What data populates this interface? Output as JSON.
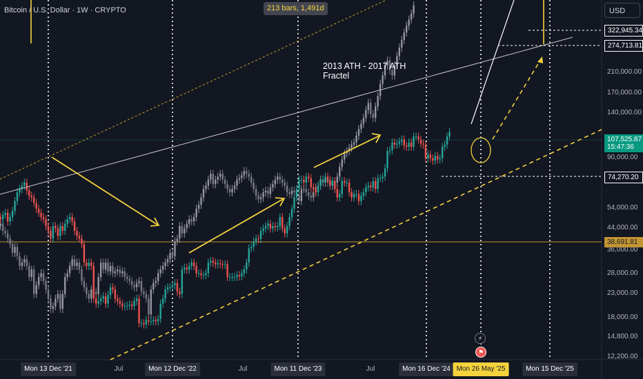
{
  "header": {
    "symbol_title": "Bitcoin / U.S. Dollar · 1W · CRYPTO",
    "bars_badge": "213 bars, 1,491d",
    "currency_button": "USD"
  },
  "annotation": {
    "line1": "2013 ATH - 2017 ATH",
    "line2": "Fractel"
  },
  "colors": {
    "background": "#131722",
    "up": "#26a69a",
    "down": "#ef5350",
    "ghost": "#9598a1",
    "yellow": "#f5d33d",
    "gold": "#c39433"
  },
  "price_tags": {
    "p322": "322,945.34",
    "p274": "274,713.81",
    "current_price": "107,525.87",
    "current_time": "15:47:36",
    "p74": "74,270.20",
    "p38": "38,691.81"
  },
  "price_ticks": [
    "210,000.00",
    "170,000.00",
    "140,000.00",
    "90,000.00",
    "54,000.00",
    "44,000.00",
    "36,000.00",
    "28,000.00",
    "23,000.00",
    "18,000.00",
    "14,800.00",
    "12,200.00"
  ],
  "time_boxes": [
    "Mon 13 Dec '21",
    "Mon 12 Dec '22",
    "Mon 11 Dec '23",
    "Mon 16 Dec '24",
    "Mon 26 May '25",
    "Mon 15 Dec '25"
  ],
  "time_ticks": [
    "Jul",
    "Jul",
    "Jul"
  ],
  "event_icons": [
    "bolt-icon",
    "flag-icon"
  ],
  "chart_data": {
    "type": "candlestick",
    "scale": "log",
    "ylim": [
      11500,
      400000
    ],
    "series": [
      {
        "start": "2021-04-26",
        "values": [
          54000,
          57000,
          49000,
          38000,
          36000,
          35500,
          34000,
          33000,
          31000,
          35000,
          39000,
          42000,
          47000,
          46000,
          48000,
          49000,
          45000,
          47000,
          50000,
          55000,
          60000,
          62000,
          64000,
          66000,
          61000,
          58000,
          57000,
          54000,
          51000,
          49000,
          47000,
          46000,
          43000,
          41000,
          38000,
          43000,
          42000,
          39000,
          43000,
          41000,
          44000,
          46000,
          47000,
          45000,
          41000,
          39000,
          38000,
          36000,
          30000,
          29000,
          30000,
          29000,
          21000,
          20000,
          20500,
          21000,
          21500,
          20000,
          21800,
          23500,
          23000,
          21000,
          20500,
          20000,
          19500,
          19500,
          19600,
          19800,
          19500,
          20500,
          21000,
          16500,
          16500,
          16300,
          17000,
          16800,
          16800,
          17000,
          16800,
          17200,
          20000,
          21000,
          23000,
          23500,
          23500,
          24000,
          24500,
          22500,
          22000,
          28000,
          28500,
          28000,
          29000,
          30000,
          29000,
          27000,
          27000,
          26500,
          26500,
          27000,
          30000,
          30500,
          30000,
          29500,
          29800,
          29500,
          29300,
          29500,
          26000,
          26000,
          26000,
          26000,
          26500,
          26200,
          27000,
          28000,
          30000,
          34500,
          35000,
          37000,
          38000,
          37800,
          41000,
          42000,
          43000,
          44000,
          42000,
          43000,
          42500,
          43000,
          47000,
          42000,
          40000,
          43000,
          47000,
          51000,
          57000,
          62000,
          68000,
          68000,
          66000,
          70000,
          69000,
          63000,
          62000,
          60000,
          64000,
          67000,
          68000,
          70000,
          68000,
          65000,
          67000,
          62000,
          57000,
          59000,
          67000,
          66000,
          66000,
          60000,
          57000,
          59000,
          59000,
          55000,
          58000,
          60000,
          63000,
          64000,
          63000,
          67000,
          62000,
          69000,
          69000,
          70000,
          76000,
          90000,
          91000,
          98000,
          96000,
          97000,
          99000,
          101000,
          95000,
          94000,
          98000,
          94000,
          104000,
          104000,
          101000,
          97000,
          96000,
          84000,
          87000,
          84000,
          82000,
          86000,
          83000,
          84000,
          94000,
          96000,
          104000,
          109000
        ]
      },
      {
        "start": "2021-01-04",
        "values": [
          38000,
          36000,
          33000,
          38000,
          40000,
          49000,
          56000,
          48000,
          55000,
          60000,
          59000,
          58000,
          59000,
          61000,
          57000,
          58000,
          62000,
          55000,
          51000,
          57000,
          57000,
          58000,
          53000,
          50000,
          51000,
          48000,
          42000,
          45000,
          43000,
          44000,
          41000,
          40000,
          38000,
          36000,
          33000,
          35000,
          32000,
          29000,
          30000,
          31000,
          29000,
          26000,
          28000,
          22000,
          24000,
          26000,
          27000,
          25000,
          23000,
          21000,
          19000,
          19500,
          21000,
          22000,
          19000,
          22000,
          26000,
          27000,
          29000,
          31000,
          29000,
          30000,
          28000,
          25000,
          23500,
          22000,
          21000,
          23000,
          22500,
          22000,
          26000,
          30000,
          28000,
          30000,
          27500,
          29000,
          27000,
          27500,
          28000,
          27000,
          27500,
          26000,
          25500,
          25000,
          24000,
          23500,
          24500,
          25000,
          22500,
          22000,
          21000,
          18000,
          23000,
          24500,
          25000,
          27000,
          28000,
          29000,
          30000,
          31000,
          33000,
          32000,
          37000,
          38000,
          43000,
          40000,
          42000,
          44000,
          46000,
          45000,
          47000,
          51000,
          53000,
          57000,
          62000,
          64000,
          68000,
          72000,
          65000,
          68000,
          70000,
          72000,
          68000,
          65000,
          62000,
          60000,
          62000,
          64000,
          68000,
          69000,
          71000,
          74000,
          72000,
          70000,
          66000,
          62000,
          58000,
          56000,
          57000,
          60000,
          61000,
          59000,
          63000,
          65000,
          68000,
          70000,
          68000,
          66000,
          64000,
          60000,
          59000,
          61000,
          60000,
          58000,
          55000,
          62000,
          62000,
          60000,
          58000,
          57000,
          60000,
          63000,
          64000,
          68000,
          66000,
          69000,
          66000,
          64000,
          67000,
          66000,
          70000,
          77000,
          83000,
          88000,
          90000,
          93000,
          96000,
          98000,
          105000,
          112000,
          118000,
          125000,
          135000,
          145000,
          130000,
          125000,
          140000,
          155000,
          175000,
          190000,
          210000,
          220000,
          200000,
          190000,
          210000,
          230000,
          250000,
          270000,
          290000,
          310000,
          330000,
          350000,
          380000
        ]
      }
    ],
    "levels": [
      322945.34,
      274713.81,
      107525.87,
      74270.2,
      38691.81
    ],
    "bars_count": 213,
    "span_days": 1491
  }
}
